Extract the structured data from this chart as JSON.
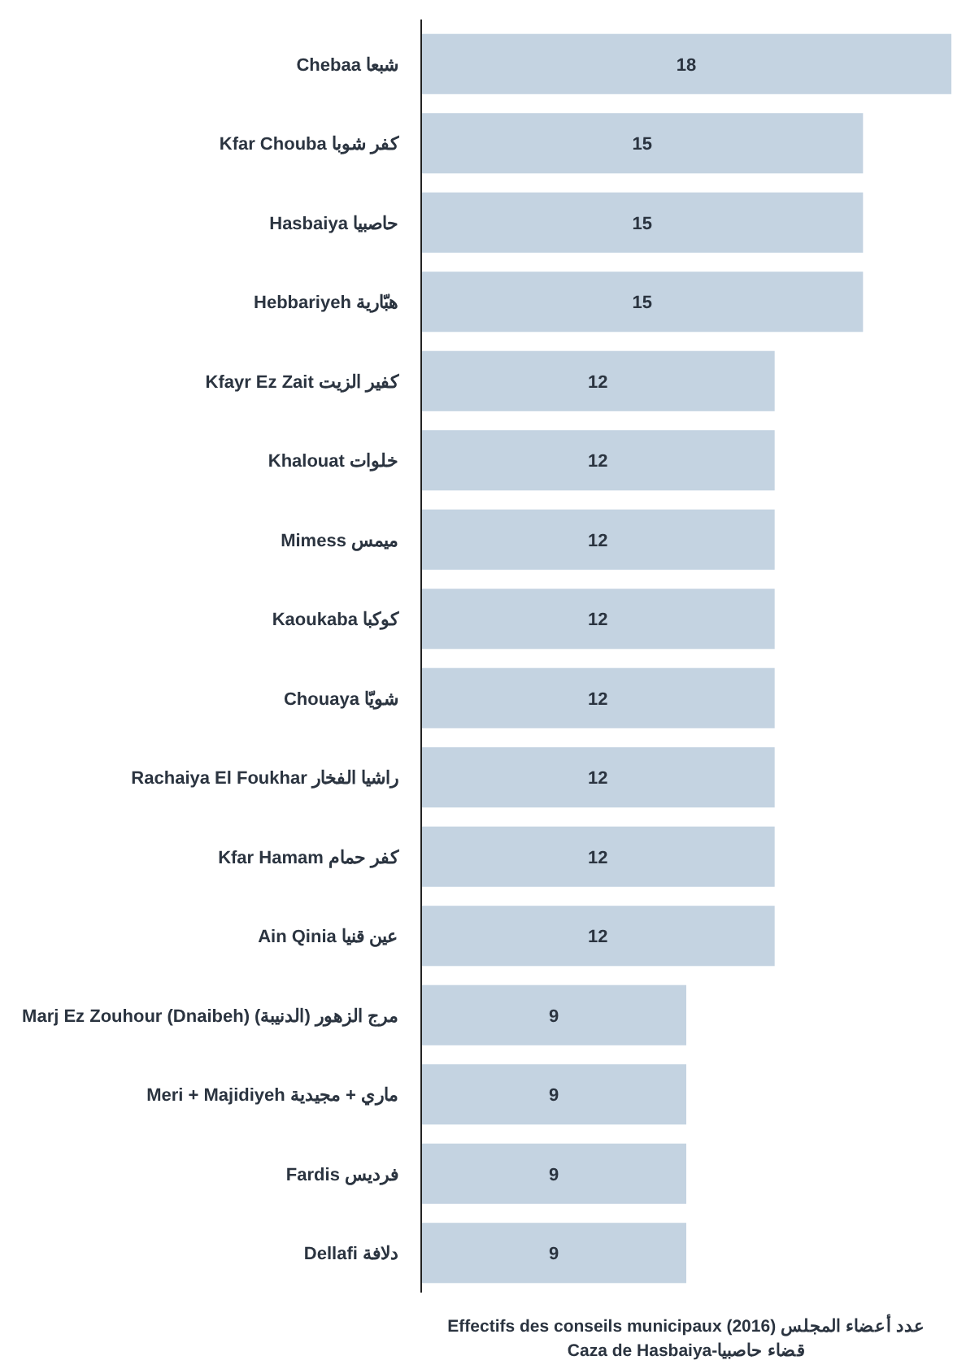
{
  "chart_data": {
    "type": "bar",
    "orientation": "horizontal",
    "categories": [
      "Chebaa شبعا",
      "Kfar Chouba كفر شوبا",
      "Hasbaiya حاصبيا",
      "Hebbariyeh هبّارية",
      "Kfayr Ez Zait كفير الزيت",
      "Khalouat خلوات",
      "Mimess ميمس",
      "Kaoukaba كوكبا",
      "Chouaya شويّا",
      "Rachaiya El Foukhar راشيا الفخار",
      "Kfar Hamam كفر حمام",
      "Ain Qinia عين قنيا",
      "Marj Ez Zouhour (Dnaibeh) مرج الزهور (الدنيبة)",
      "Meri + Majidiyeh ماري + مجيدية",
      "Fardis فرديس",
      "Dellafi دلافة"
    ],
    "values": [
      18,
      15,
      15,
      15,
      12,
      12,
      12,
      12,
      12,
      12,
      12,
      12,
      9,
      9,
      9,
      9
    ],
    "color": "#c4d3e1",
    "xlabel": "Effectifs des conseils municipaux (2016) عدد أعضاء المجلس\nCaza de Hasbaiya-قضاء حاصبيا",
    "data_labels": true
  }
}
